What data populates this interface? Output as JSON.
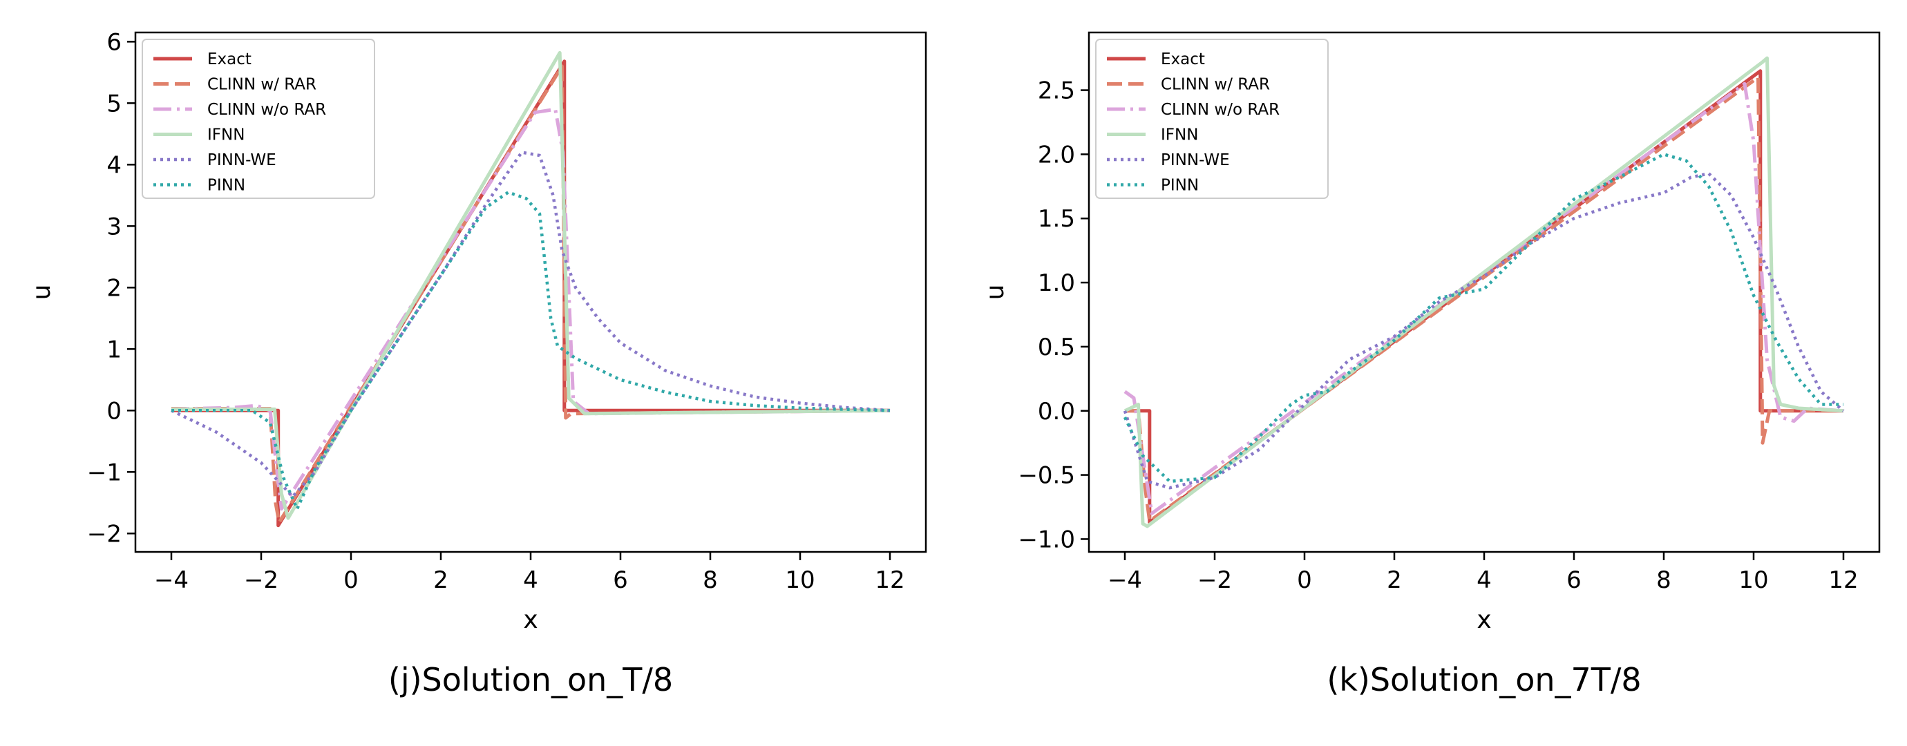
{
  "chart_data": [
    {
      "type": "line",
      "caption": "(j)Solution_on_T/8",
      "xlabel": "x",
      "ylabel": "u",
      "xlim": [
        -4.8,
        12.8
      ],
      "ylim": [
        -2.3,
        6.15
      ],
      "xticks": [
        -4,
        -2,
        0,
        2,
        4,
        6,
        8,
        10,
        12
      ],
      "yticks": [
        -2,
        -1,
        0,
        1,
        2,
        3,
        4,
        5,
        6
      ],
      "xtick_labels": [
        "−4",
        "−2",
        "0",
        "2",
        "4",
        "6",
        "8",
        "10",
        "12"
      ],
      "ytick_labels": [
        "−2",
        "−1",
        "0",
        "1",
        "2",
        "3",
        "4",
        "5",
        "6"
      ],
      "legend_position": "top-left",
      "series": [
        {
          "name": "Exact",
          "color": "#d04848",
          "dash": "solid",
          "points": [
            [
              -4,
              0
            ],
            [
              -1.62,
              0
            ],
            [
              -1.62,
              -1.87
            ],
            [
              4.75,
              5.68
            ],
            [
              4.75,
              0
            ],
            [
              12,
              0
            ]
          ]
        },
        {
          "name": "CLINN w/ RAR",
          "color": "#e0806a",
          "dash": "dashed",
          "points": [
            [
              -4,
              0.03
            ],
            [
              -1.8,
              0.03
            ],
            [
              -1.68,
              -1.5
            ],
            [
              -1.6,
              -1.82
            ],
            [
              4.7,
              5.6
            ],
            [
              4.78,
              -0.12
            ],
            [
              4.9,
              -0.05
            ],
            [
              12,
              0
            ]
          ]
        },
        {
          "name": "CLINN w/o RAR",
          "color": "#dca5dc",
          "dash": "dashdot",
          "points": [
            [
              -4,
              0.02
            ],
            [
              -2.6,
              0.05
            ],
            [
              -2.1,
              0.08
            ],
            [
              -1.8,
              0
            ],
            [
              -1.55,
              -1.6
            ],
            [
              4.1,
              4.85
            ],
            [
              4.55,
              4.9
            ],
            [
              4.72,
              4.2
            ],
            [
              4.95,
              0.15
            ],
            [
              5.3,
              -0.05
            ],
            [
              12,
              0
            ]
          ]
        },
        {
          "name": "IFNN",
          "color": "#bde0c0",
          "dash": "solid",
          "points": [
            [
              -4,
              0.02
            ],
            [
              -1.7,
              0.02
            ],
            [
              -1.55,
              -1.35
            ],
            [
              -1.4,
              -1.75
            ],
            [
              4.65,
              5.82
            ],
            [
              4.75,
              3.0
            ],
            [
              4.85,
              0.2
            ],
            [
              5.2,
              -0.05
            ],
            [
              12,
              0
            ]
          ]
        },
        {
          "name": "PINN-WE",
          "color": "#8878c8",
          "dash": "dotted",
          "points": [
            [
              -4,
              0
            ],
            [
              -3,
              -0.35
            ],
            [
              -2,
              -0.85
            ],
            [
              -1.3,
              -1.4
            ],
            [
              -0.8,
              -1.0
            ],
            [
              0,
              0
            ],
            [
              2,
              2.2
            ],
            [
              3,
              3.35
            ],
            [
              3.8,
              4.2
            ],
            [
              4.2,
              4.15
            ],
            [
              4.5,
              3.5
            ],
            [
              4.7,
              2.6
            ],
            [
              5,
              2.0
            ],
            [
              5.5,
              1.5
            ],
            [
              6,
              1.1
            ],
            [
              7,
              0.65
            ],
            [
              8,
              0.4
            ],
            [
              9,
              0.22
            ],
            [
              10,
              0.12
            ],
            [
              11,
              0.05
            ],
            [
              12,
              0
            ]
          ]
        },
        {
          "name": "PINN",
          "color": "#30a8a8",
          "dash": "dotted",
          "points": [
            [
              -4,
              0
            ],
            [
              -2.2,
              0
            ],
            [
              -1.8,
              -0.2
            ],
            [
              -1.5,
              -1.1
            ],
            [
              -1.2,
              -1.6
            ],
            [
              -0.8,
              -0.95
            ],
            [
              0,
              0
            ],
            [
              2,
              2.2
            ],
            [
              3,
              3.3
            ],
            [
              3.5,
              3.55
            ],
            [
              3.9,
              3.45
            ],
            [
              4.2,
              3.2
            ],
            [
              4.35,
              2.2
            ],
            [
              4.45,
              1.5
            ],
            [
              4.6,
              1.05
            ],
            [
              5,
              0.85
            ],
            [
              6,
              0.5
            ],
            [
              7,
              0.3
            ],
            [
              8,
              0.15
            ],
            [
              9,
              0.08
            ],
            [
              10,
              0.04
            ],
            [
              12,
              0
            ]
          ]
        }
      ]
    },
    {
      "type": "line",
      "caption": "(k)Solution_on_7T/8",
      "xlabel": "x",
      "ylabel": "u",
      "xlim": [
        -4.8,
        12.8
      ],
      "ylim": [
        -1.1,
        2.95
      ],
      "xticks": [
        -4,
        -2,
        0,
        2,
        4,
        6,
        8,
        10,
        12
      ],
      "yticks": [
        -1.0,
        -0.5,
        0.0,
        0.5,
        1.0,
        1.5,
        2.0,
        2.5
      ],
      "xtick_labels": [
        "−4",
        "−2",
        "0",
        "2",
        "4",
        "6",
        "8",
        "10",
        "12"
      ],
      "ytick_labels": [
        "−1.0",
        "−0.5",
        "0.0",
        "0.5",
        "1.0",
        "1.5",
        "2.0",
        "2.5"
      ],
      "legend_position": "top-left",
      "series": [
        {
          "name": "Exact",
          "color": "#d04848",
          "dash": "solid",
          "points": [
            [
              -4,
              0
            ],
            [
              -3.45,
              0
            ],
            [
              -3.45,
              -0.87
            ],
            [
              10.15,
              2.65
            ],
            [
              10.15,
              0
            ],
            [
              12,
              0
            ]
          ]
        },
        {
          "name": "CLINN w/ RAR",
          "color": "#e0806a",
          "dash": "dashed",
          "points": [
            [
              -4,
              0
            ],
            [
              -3.7,
              0
            ],
            [
              -3.55,
              -0.6
            ],
            [
              -3.45,
              -0.86
            ],
            [
              10.1,
              2.6
            ],
            [
              10.2,
              -0.25
            ],
            [
              10.35,
              0
            ],
            [
              12,
              0
            ]
          ]
        },
        {
          "name": "CLINN w/o RAR",
          "color": "#dca5dc",
          "dash": "dashdot",
          "points": [
            [
              -4,
              0.15
            ],
            [
              -3.8,
              0.1
            ],
            [
              -3.6,
              -0.35
            ],
            [
              -3.4,
              -0.8
            ],
            [
              9.8,
              2.55
            ],
            [
              10.0,
              2.1
            ],
            [
              10.3,
              0.4
            ],
            [
              10.6,
              -0.05
            ],
            [
              10.9,
              -0.08
            ],
            [
              11.2,
              0.02
            ],
            [
              12,
              0
            ]
          ]
        },
        {
          "name": "IFNN",
          "color": "#bde0c0",
          "dash": "solid",
          "points": [
            [
              -4,
              0
            ],
            [
              -3.7,
              0.05
            ],
            [
              -3.6,
              -0.88
            ],
            [
              -3.5,
              -0.9
            ],
            [
              10.2,
              2.72
            ],
            [
              10.3,
              2.75
            ],
            [
              10.45,
              0.2
            ],
            [
              10.6,
              0.05
            ],
            [
              11,
              0.02
            ],
            [
              12,
              0
            ]
          ]
        },
        {
          "name": "PINN-WE",
          "color": "#8878c8",
          "dash": "dotted",
          "points": [
            [
              -4,
              0
            ],
            [
              -3.5,
              -0.55
            ],
            [
              -3,
              -0.6
            ],
            [
              -2,
              -0.52
            ],
            [
              -1,
              -0.3
            ],
            [
              0,
              0.05
            ],
            [
              1,
              0.4
            ],
            [
              2,
              0.58
            ],
            [
              3,
              0.85
            ],
            [
              4,
              1.05
            ],
            [
              5,
              1.3
            ],
            [
              6,
              1.5
            ],
            [
              7,
              1.62
            ],
            [
              8,
              1.7
            ],
            [
              8.6,
              1.82
            ],
            [
              9,
              1.85
            ],
            [
              9.5,
              1.68
            ],
            [
              10,
              1.35
            ],
            [
              10.5,
              0.95
            ],
            [
              11,
              0.5
            ],
            [
              11.5,
              0.15
            ],
            [
              12,
              0
            ]
          ]
        },
        {
          "name": "PINN",
          "color": "#30a8a8",
          "dash": "dotted",
          "points": [
            [
              -4,
              -0.05
            ],
            [
              -3.6,
              -0.35
            ],
            [
              -3,
              -0.55
            ],
            [
              -2,
              -0.52
            ],
            [
              -1,
              -0.2
            ],
            [
              -0.3,
              0.05
            ],
            [
              0,
              0.12
            ],
            [
              0.5,
              0.15
            ],
            [
              1,
              0.3
            ],
            [
              2,
              0.55
            ],
            [
              3,
              0.88
            ],
            [
              4,
              0.95
            ],
            [
              5,
              1.3
            ],
            [
              6,
              1.65
            ],
            [
              7,
              1.82
            ],
            [
              8,
              2.0
            ],
            [
              8.5,
              1.95
            ],
            [
              9,
              1.75
            ],
            [
              9.5,
              1.4
            ],
            [
              10,
              0.9
            ],
            [
              10.5,
              0.55
            ],
            [
              11,
              0.25
            ],
            [
              11.5,
              0.05
            ],
            [
              12,
              0.05
            ]
          ]
        }
      ]
    }
  ]
}
